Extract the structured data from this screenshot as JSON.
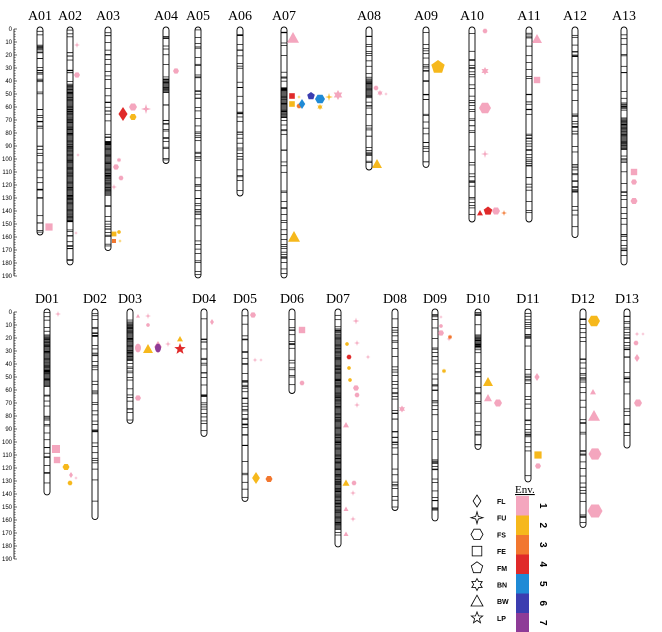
{
  "figure": {
    "top_axis_ticks": [
      "0",
      "10",
      "20",
      "30",
      "40",
      "50",
      "60",
      "70",
      "80",
      "90",
      "100",
      "110",
      "120",
      "130",
      "140",
      "150",
      "160",
      "170",
      "180",
      "190"
    ],
    "bottom_axis_ticks": [
      "0",
      "10",
      "20",
      "30",
      "40",
      "50",
      "60",
      "70",
      "80",
      "90",
      "100",
      "110",
      "120",
      "130",
      "140",
      "150",
      "160",
      "170",
      "180",
      "190"
    ],
    "top_chromosomes": [
      {
        "name": "A01",
        "length": 160,
        "dense": [
          [
            14,
            18
          ]
        ]
      },
      {
        "name": "A02",
        "length": 183,
        "dense": [
          [
            44,
            150
          ]
        ]
      },
      {
        "name": "A03",
        "length": 172,
        "dense": [
          [
            88,
            130
          ]
        ]
      },
      {
        "name": "A04",
        "length": 105,
        "dense": [
          [
            40,
            50
          ]
        ]
      },
      {
        "name": "A05",
        "length": 193,
        "dense": []
      },
      {
        "name": "A06",
        "length": 130,
        "dense": []
      },
      {
        "name": "A07",
        "length": 193,
        "dense": [
          [
            48,
            70
          ]
        ]
      },
      {
        "name": "A08",
        "length": 110,
        "dense": [
          [
            40,
            55
          ]
        ]
      },
      {
        "name": "A09",
        "length": 108,
        "dense": []
      },
      {
        "name": "A10",
        "length": 150,
        "dense": []
      },
      {
        "name": "A11",
        "length": 150,
        "dense": []
      },
      {
        "name": "A12",
        "length": 162,
        "dense": []
      },
      {
        "name": "A13",
        "length": 183,
        "dense": [
          [
            70,
            95
          ]
        ]
      }
    ],
    "bottom_chromosomes": [
      {
        "name": "D01",
        "length": 143,
        "dense": [
          [
            20,
            60
          ]
        ]
      },
      {
        "name": "D02",
        "length": 162,
        "dense": []
      },
      {
        "name": "D03",
        "length": 88,
        "dense": [
          [
            10,
            40
          ]
        ]
      },
      {
        "name": "D04",
        "length": 98,
        "dense": []
      },
      {
        "name": "D05",
        "length": 148,
        "dense": []
      },
      {
        "name": "D06",
        "length": 65,
        "dense": []
      },
      {
        "name": "D07",
        "length": 183,
        "dense": [
          [
            20,
            170
          ]
        ]
      },
      {
        "name": "D08",
        "length": 155,
        "dense": []
      },
      {
        "name": "D09",
        "length": 163,
        "dense": []
      },
      {
        "name": "D10",
        "length": 108,
        "dense": [
          [
            20,
            30
          ]
        ]
      },
      {
        "name": "D11",
        "length": 133,
        "dense": []
      },
      {
        "name": "D12",
        "length": 168,
        "dense": []
      },
      {
        "name": "D13",
        "length": 107,
        "dense": []
      }
    ],
    "legend": {
      "title": "Env.",
      "traits": [
        {
          "label": "FL",
          "icon": "diamond-icon"
        },
        {
          "label": "FU",
          "icon": "four-point-star-icon"
        },
        {
          "label": "FS",
          "icon": "hexagon-icon"
        },
        {
          "label": "FE",
          "icon": "square-icon"
        },
        {
          "label": "FM",
          "icon": "pentagon-icon"
        },
        {
          "label": "BN",
          "icon": "six-point-star-icon"
        },
        {
          "label": "BW",
          "icon": "triangle-icon"
        },
        {
          "label": "LP",
          "icon": "five-point-star-icon"
        }
      ],
      "environments": [
        {
          "number": "1",
          "color": "#f4a6be"
        },
        {
          "number": "2",
          "color": "#f6b81c"
        },
        {
          "number": "3",
          "color": "#f2772f"
        },
        {
          "number": "4",
          "color": "#e02a2a"
        },
        {
          "number": "5",
          "color": "#1f8ad6"
        },
        {
          "number": "6",
          "color": "#3b3db0"
        },
        {
          "number": "7",
          "color": "#8e3b97"
        }
      ]
    }
  }
}
